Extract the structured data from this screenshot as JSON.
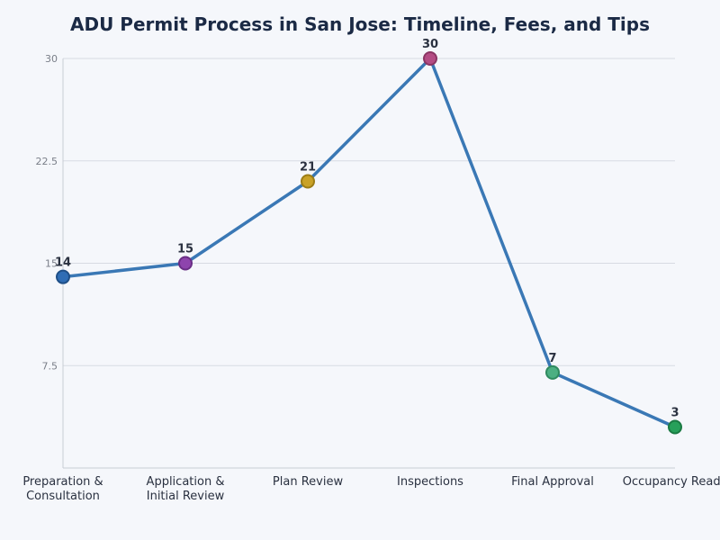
{
  "chart_data": {
    "type": "line",
    "title": "ADU Permit Process in San Jose: Timeline, Fees, and Tips",
    "xlabel": "",
    "ylabel": "",
    "categories": [
      "Preparation & Consultation",
      "Application & Initial Review",
      "Plan Review",
      "Inspections",
      "Final Approval",
      "Occupancy Ready"
    ],
    "category_lines": [
      [
        "Preparation &",
        "Consultation"
      ],
      [
        "Application &",
        "Initial Review"
      ],
      [
        "Plan Review"
      ],
      [
        "Inspections"
      ],
      [
        "Final Approval"
      ],
      [
        "Occupancy Ready"
      ]
    ],
    "values": [
      14,
      15,
      21,
      30,
      7,
      3
    ],
    "data_labels": [
      "14",
      "15",
      "21",
      "30",
      "7",
      "3"
    ],
    "point_colors": [
      "#2f6db5",
      "#8e44ad",
      "#c9a227",
      "#b44c84",
      "#4caf82",
      "#27a05a"
    ],
    "point_stroke_colors": [
      "#1f4f87",
      "#6a2e86",
      "#9c7d16",
      "#8a3563",
      "#2f8a5f",
      "#1b7a43"
    ],
    "line_color": "#3a78b5",
    "ylim": [
      0,
      30
    ],
    "yticks": [
      7.5,
      15,
      22.5,
      30
    ],
    "ytick_labels": [
      "7.5",
      "15",
      "22.5",
      "30"
    ],
    "grid": true,
    "legend": "none"
  }
}
